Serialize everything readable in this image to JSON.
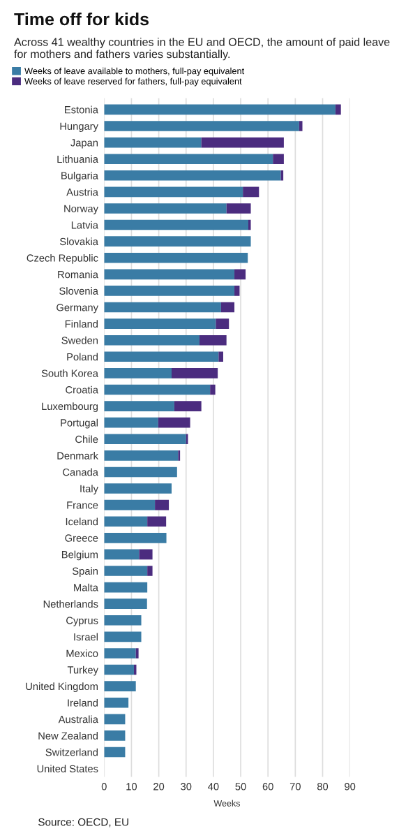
{
  "chart_data": {
    "type": "bar",
    "orientation": "horizontal",
    "stacked": true,
    "title": "Time off for kids",
    "subtitle": "Across 41 wealthy countries in the EU and OECD, the amount of paid leave for mothers and fathers varies substantially.",
    "xlabel": "Weeks",
    "annotations": [
      "Source: OECD, EU"
    ],
    "categories": [
      "Estonia",
      "Hungary",
      "Japan",
      "Lithuania",
      "Bulgaria",
      "Austria",
      "Norway",
      "Latvia",
      "Slovakia",
      "Czech Republic",
      "Romania",
      "Slovenia",
      "Germany",
      "Finland",
      "Sweden",
      "Poland",
      "South Korea",
      "Croatia",
      "Luxembourg",
      "Portugal",
      "Chile",
      "Denmark",
      "Canada",
      "Italy",
      "France",
      "Iceland",
      "Greece",
      "Belgium",
      "Spain",
      "Malta",
      "Netherlands",
      "Cyprus",
      "Israel",
      "Mexico",
      "Turkey",
      "United Kingdom",
      "Ireland",
      "Australia",
      "New Zealand",
      "Switzerland",
      "United States"
    ],
    "series": [
      {
        "name": "Weeks of leave available to mothers, full-pay equivalent",
        "color": "#3a7ca5",
        "values": [
          84.7,
          71.4,
          35.6,
          61.8,
          64.7,
          50.8,
          44.8,
          52.8,
          53.7,
          52.6,
          47.7,
          47.7,
          42.8,
          40.9,
          34.9,
          41.9,
          24.7,
          38.8,
          25.7,
          19.8,
          30.0,
          27.1,
          26.7,
          24.7,
          18.6,
          15.8,
          22.8,
          12.8,
          15.8,
          15.8,
          15.7,
          13.6,
          13.6,
          11.6,
          10.9,
          11.6,
          8.9,
          7.7,
          7.7,
          7.7,
          0
        ]
      },
      {
        "name": "Weeks of leave reserved for fathers, full-pay equivalent",
        "color": "#4b2c7f",
        "values": [
          2.0,
          1.2,
          30.2,
          4.0,
          0.9,
          5.9,
          8.9,
          0.9,
          0,
          0,
          4.1,
          1.9,
          4.9,
          4.8,
          9.9,
          1.7,
          16.9,
          1.9,
          9.9,
          11.7,
          0.7,
          0.7,
          0,
          0,
          5.1,
          6.9,
          0,
          4.9,
          1.9,
          0,
          0,
          0,
          0,
          1.0,
          0.9,
          0,
          0,
          0,
          0,
          0,
          0
        ]
      }
    ],
    "xlim": [
      0,
      90
    ],
    "xticks": [
      0,
      10,
      20,
      30,
      40,
      50,
      60,
      70,
      80,
      90
    ],
    "grid": "x",
    "legend": "top left"
  }
}
